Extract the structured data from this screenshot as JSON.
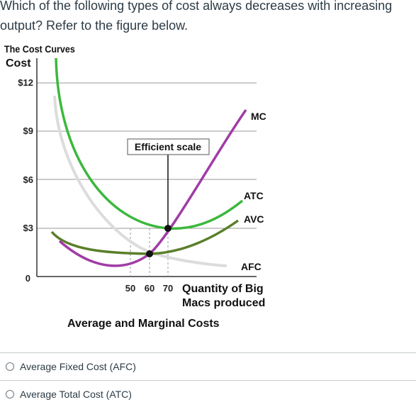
{
  "question": {
    "text": "Which of the following types of cost always decreases with increasing output? Refer to the figure below."
  },
  "figure": {
    "heading": "The Cost Curves",
    "y_axis_label": "Cost",
    "y_ticks": [
      "$12",
      "$9",
      "$6",
      "$3",
      "0"
    ],
    "x_ticks": [
      "50",
      "60",
      "70"
    ],
    "x_axis_label_line1": "Quantity of Big",
    "x_axis_label_line2": "Macs produced",
    "caption": "Average and Marginal Costs",
    "annotation": "Efficient scale",
    "curve_labels": {
      "mc": "MC",
      "atc": "ATC",
      "avc": "AVC",
      "afc": "AFC"
    },
    "colors": {
      "mc": "#a03ca6",
      "atc": "#3cb83c",
      "avc": "#5a7f2a",
      "afc": "#dcdcdc"
    }
  },
  "options": [
    {
      "label": "Average Fixed Cost (AFC)",
      "selected": false
    },
    {
      "label": "Average Total Cost (ATC)",
      "selected": false
    }
  ]
}
